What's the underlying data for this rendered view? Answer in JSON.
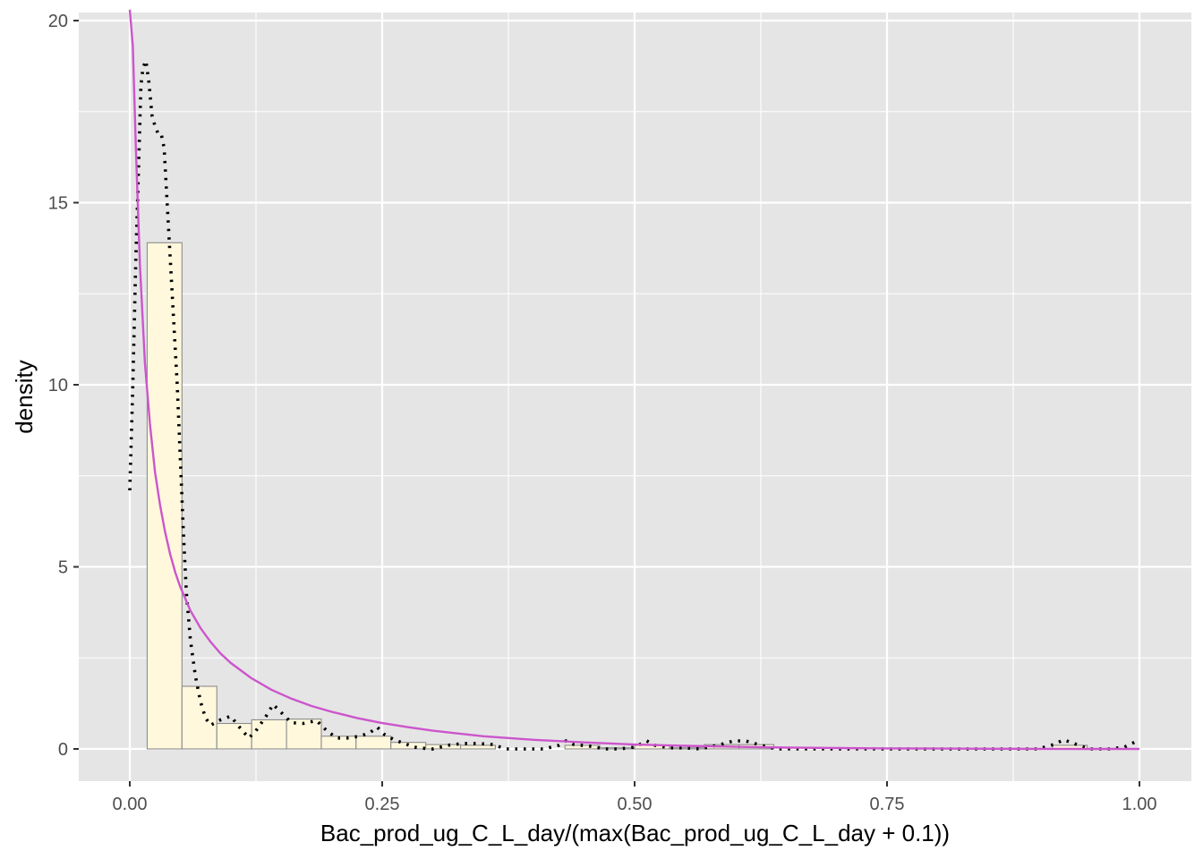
{
  "chart_data": {
    "type": "histogram",
    "xlabel": "Bac_prod_ug_C_L_day/(max(Bac_prod_ug_C_L_day + 0.1))",
    "ylabel": "density",
    "xlim": [
      -0.05,
      1.02
    ],
    "ylim": [
      -0.9,
      20.3
    ],
    "x_ticks": [
      {
        "value": 0.0,
        "label": "0.00"
      },
      {
        "value": 0.25,
        "label": "0.25"
      },
      {
        "value": 0.5,
        "label": "0.50"
      },
      {
        "value": 0.75,
        "label": "0.75"
      },
      {
        "value": 1.0,
        "label": "1.00"
      }
    ],
    "y_ticks": [
      {
        "value": 0,
        "label": "0"
      },
      {
        "value": 5,
        "label": "5"
      },
      {
        "value": 10,
        "label": "10"
      },
      {
        "value": 15,
        "label": "15"
      },
      {
        "value": 20,
        "label": "20"
      }
    ],
    "background": "#e5e5e5",
    "grid": true,
    "grid_color": "#ffffff",
    "histogram": {
      "fill": "#fff8dc",
      "stroke": "#8c8c8c",
      "bins": [
        {
          "x0": 0.0172,
          "x1": 0.0517,
          "density": 13.9
        },
        {
          "x0": 0.0517,
          "x1": 0.0862,
          "density": 1.72
        },
        {
          "x0": 0.0862,
          "x1": 0.1207,
          "density": 0.7
        },
        {
          "x0": 0.1207,
          "x1": 0.1552,
          "density": 0.8
        },
        {
          "x0": 0.1552,
          "x1": 0.1897,
          "density": 0.82
        },
        {
          "x0": 0.1897,
          "x1": 0.2241,
          "density": 0.35
        },
        {
          "x0": 0.2241,
          "x1": 0.2586,
          "density": 0.35
        },
        {
          "x0": 0.2586,
          "x1": 0.2931,
          "density": 0.18
        },
        {
          "x0": 0.2931,
          "x1": 0.3276,
          "density": 0.12
        },
        {
          "x0": 0.3276,
          "x1": 0.3621,
          "density": 0.1
        },
        {
          "x0": 0.3621,
          "x1": 0.3966,
          "density": 0.0
        },
        {
          "x0": 0.3966,
          "x1": 0.431,
          "density": 0.0
        },
        {
          "x0": 0.431,
          "x1": 0.4655,
          "density": 0.1
        },
        {
          "x0": 0.4655,
          "x1": 0.5,
          "density": 0.03
        },
        {
          "x0": 0.5,
          "x1": 0.5345,
          "density": 0.1
        },
        {
          "x0": 0.5345,
          "x1": 0.569,
          "density": 0.03
        },
        {
          "x0": 0.569,
          "x1": 0.6034,
          "density": 0.12
        },
        {
          "x0": 0.6034,
          "x1": 0.6379,
          "density": 0.12
        },
        {
          "x0": 0.6379,
          "x1": 0.6724,
          "density": 0.0
        },
        {
          "x0": 0.6724,
          "x1": 0.7069,
          "density": 0.0
        },
        {
          "x0": 0.7069,
          "x1": 0.7414,
          "density": 0.0
        },
        {
          "x0": 0.7414,
          "x1": 0.7759,
          "density": 0.0
        },
        {
          "x0": 0.7759,
          "x1": 0.8103,
          "density": 0.0
        },
        {
          "x0": 0.8103,
          "x1": 0.8448,
          "density": 0.0
        },
        {
          "x0": 0.8448,
          "x1": 0.8793,
          "density": 0.0
        },
        {
          "x0": 0.8793,
          "x1": 0.9138,
          "density": 0.0
        },
        {
          "x0": 0.9138,
          "x1": 0.9483,
          "density": 0.1
        },
        {
          "x0": 0.9483,
          "x1": 0.9828,
          "density": 0.0
        }
      ]
    },
    "density_curve": {
      "style": "dotted",
      "color": "#000000",
      "points": [
        [
          0.0,
          7.1
        ],
        [
          0.003,
          10.0
        ],
        [
          0.006,
          13.5
        ],
        [
          0.009,
          16.3
        ],
        [
          0.011,
          18.2
        ],
        [
          0.013,
          18.7
        ],
        [
          0.016,
          18.9
        ],
        [
          0.019,
          18.3
        ],
        [
          0.022,
          17.4
        ],
        [
          0.025,
          17.1
        ],
        [
          0.028,
          16.9
        ],
        [
          0.031,
          16.9
        ],
        [
          0.034,
          16.5
        ],
        [
          0.037,
          15.0
        ],
        [
          0.04,
          13.5
        ],
        [
          0.043,
          12.0
        ],
        [
          0.047,
          10.0
        ],
        [
          0.05,
          8.0
        ],
        [
          0.053,
          6.0
        ],
        [
          0.056,
          4.3
        ],
        [
          0.06,
          3.0
        ],
        [
          0.065,
          2.0
        ],
        [
          0.07,
          1.3
        ],
        [
          0.075,
          0.85
        ],
        [
          0.08,
          0.65
        ],
        [
          0.09,
          0.8
        ],
        [
          0.1,
          0.9
        ],
        [
          0.11,
          0.55
        ],
        [
          0.118,
          0.3
        ],
        [
          0.125,
          0.5
        ],
        [
          0.135,
          0.9
        ],
        [
          0.142,
          1.22
        ],
        [
          0.15,
          1.0
        ],
        [
          0.16,
          0.72
        ],
        [
          0.172,
          0.7
        ],
        [
          0.185,
          0.78
        ],
        [
          0.195,
          0.5
        ],
        [
          0.205,
          0.3
        ],
        [
          0.215,
          0.3
        ],
        [
          0.228,
          0.35
        ],
        [
          0.238,
          0.45
        ],
        [
          0.245,
          0.6
        ],
        [
          0.252,
          0.4
        ],
        [
          0.262,
          0.25
        ],
        [
          0.272,
          0.15
        ],
        [
          0.282,
          0.05
        ],
        [
          0.29,
          0.02
        ],
        [
          0.3,
          0.0
        ],
        [
          0.315,
          0.1
        ],
        [
          0.33,
          0.15
        ],
        [
          0.345,
          0.15
        ],
        [
          0.36,
          0.12
        ],
        [
          0.372,
          0.0
        ],
        [
          0.39,
          0.0
        ],
        [
          0.41,
          0.0
        ],
        [
          0.425,
          0.1
        ],
        [
          0.432,
          0.22
        ],
        [
          0.44,
          0.12
        ],
        [
          0.455,
          0.08
        ],
        [
          0.47,
          0.0
        ],
        [
          0.485,
          0.0
        ],
        [
          0.5,
          0.05
        ],
        [
          0.512,
          0.22
        ],
        [
          0.52,
          0.1
        ],
        [
          0.535,
          0.03
        ],
        [
          0.55,
          0.03
        ],
        [
          0.565,
          0.0
        ],
        [
          0.585,
          0.12
        ],
        [
          0.598,
          0.22
        ],
        [
          0.61,
          0.22
        ],
        [
          0.625,
          0.1
        ],
        [
          0.64,
          0.0
        ],
        [
          0.66,
          0.0
        ],
        [
          0.7,
          0.0
        ],
        [
          0.75,
          0.0
        ],
        [
          0.8,
          0.0
        ],
        [
          0.85,
          0.0
        ],
        [
          0.9,
          0.0
        ],
        [
          0.915,
          0.12
        ],
        [
          0.925,
          0.25
        ],
        [
          0.935,
          0.15
        ],
        [
          0.95,
          0.0
        ],
        [
          0.97,
          0.0
        ],
        [
          0.985,
          0.05
        ],
        [
          1.0,
          0.25
        ]
      ]
    },
    "fitted_curve": {
      "style": "solid",
      "color": "#cc55cc",
      "points": [
        [
          0.0,
          20.3
        ],
        [
          0.003,
          19.3
        ],
        [
          0.006,
          16.5
        ],
        [
          0.01,
          13.3
        ],
        [
          0.015,
          10.6
        ],
        [
          0.02,
          8.9
        ],
        [
          0.025,
          7.6
        ],
        [
          0.03,
          6.7
        ],
        [
          0.035,
          5.95
        ],
        [
          0.04,
          5.35
        ],
        [
          0.045,
          4.85
        ],
        [
          0.05,
          4.45
        ],
        [
          0.06,
          3.8
        ],
        [
          0.07,
          3.32
        ],
        [
          0.08,
          2.94
        ],
        [
          0.09,
          2.62
        ],
        [
          0.1,
          2.36
        ],
        [
          0.12,
          1.95
        ],
        [
          0.14,
          1.63
        ],
        [
          0.16,
          1.38
        ],
        [
          0.18,
          1.18
        ],
        [
          0.2,
          1.02
        ],
        [
          0.225,
          0.85
        ],
        [
          0.25,
          0.71
        ],
        [
          0.275,
          0.6
        ],
        [
          0.3,
          0.5
        ],
        [
          0.35,
          0.35
        ],
        [
          0.4,
          0.25
        ],
        [
          0.45,
          0.18
        ],
        [
          0.5,
          0.12
        ],
        [
          0.55,
          0.085
        ],
        [
          0.6,
          0.058
        ],
        [
          0.65,
          0.038
        ],
        [
          0.7,
          0.024
        ],
        [
          0.75,
          0.015
        ],
        [
          0.8,
          0.009
        ],
        [
          0.85,
          0.005
        ],
        [
          0.9,
          0.002
        ],
        [
          0.95,
          0.001
        ],
        [
          1.0,
          0.0
        ]
      ]
    }
  }
}
